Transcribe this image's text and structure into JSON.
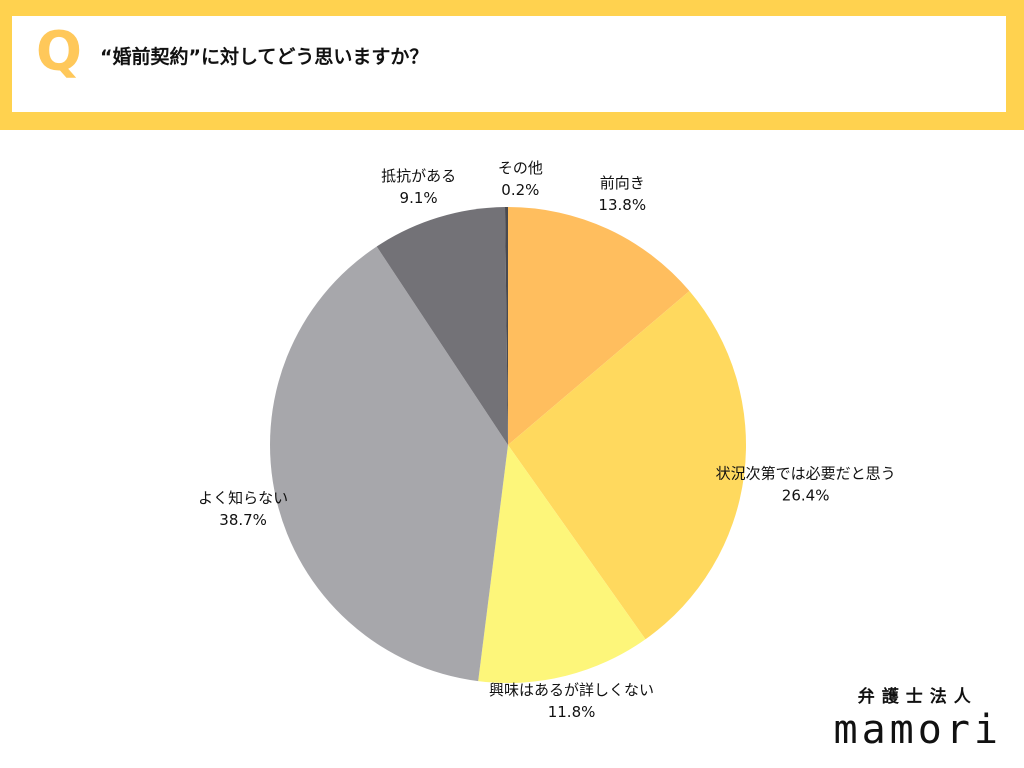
{
  "header": {
    "q_letter": "Q",
    "question": "“婚前契約”に対してどう思いますか？"
  },
  "brand": {
    "tagline": "弁護士法人",
    "name": "mamori"
  },
  "chart_data": {
    "type": "pie",
    "title": "“婚前契約”に対してどう思いますか？",
    "unit": "%",
    "start_angle_deg": 0,
    "direction": "clockwise",
    "slices": [
      {
        "label": "前向き",
        "value": 13.8,
        "display": "13.8%",
        "color": "#ffbe5e"
      },
      {
        "label": "状況次第では必要だと思う",
        "value": 26.4,
        "display": "26.4%",
        "color": "#ffd95e"
      },
      {
        "label": "興味はあるが詳しくない",
        "value": 11.8,
        "display": "11.8%",
        "color": "#fdf67a"
      },
      {
        "label": "よく知らない",
        "value": 38.7,
        "display": "38.7%",
        "color": "#a7a7ab"
      },
      {
        "label": "抵抗がある",
        "value": 9.1,
        "display": "9.1%",
        "color": "#737277"
      },
      {
        "label": "その他",
        "value": 0.2,
        "display": "0.2%",
        "color": "#4a4a4f"
      }
    ]
  }
}
